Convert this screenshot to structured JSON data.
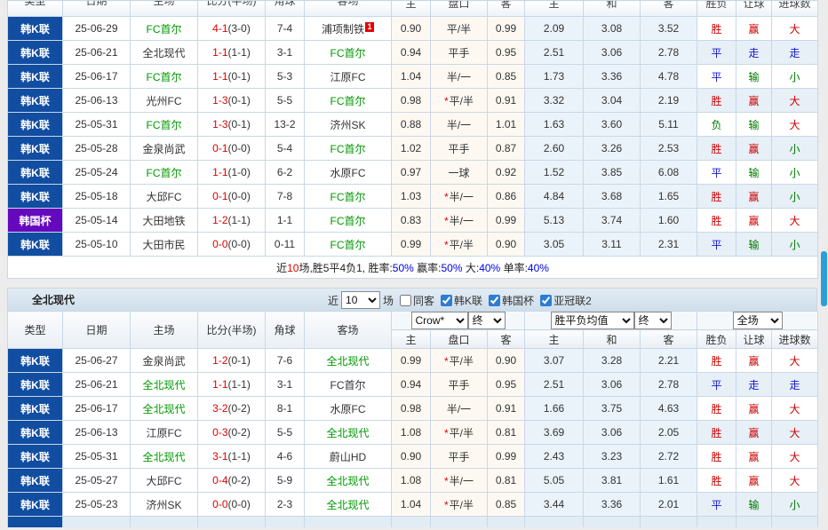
{
  "colors": {
    "league_blue": "#114da1",
    "cup_purple": "#6509be",
    "team_green": "#009900",
    "win_red": "#cc0000",
    "draw_blue": "#1616cc",
    "lose_green": "#007a00",
    "asian_odds_bg": "#fdf9f2",
    "euro_odds_bg": "#eaf3fa",
    "scrollbar_blue": "#2d9fd8"
  },
  "columns": [
    "类型",
    "日期",
    "主场",
    "比分(半场)",
    "角球",
    "客场",
    "主",
    "盘口",
    "客",
    "主",
    "和",
    "客",
    "胜负",
    "让球",
    "进球数"
  ],
  "table1": {
    "rows": [
      {
        "league": "韩K联",
        "cup": false,
        "date": "25-06-29",
        "home": "FC首尔",
        "home_green": true,
        "score": "4-1",
        "half": "(3-0)",
        "corners": "7-4",
        "away": "浦项制铁",
        "away_green": false,
        "badge": "1",
        "ah_home": "0.90",
        "star": false,
        "handicap": "平/半",
        "ah_away": "0.99",
        "eu_home": "2.09",
        "eu_draw": "3.08",
        "eu_away": "3.52",
        "wdl": "胜",
        "wdl_c": "red",
        "hc": "赢",
        "hc_c": "red",
        "ou": "大",
        "ou_c": "red",
        "alt": false
      },
      {
        "league": "韩K联",
        "cup": false,
        "date": "25-06-21",
        "home": "全北现代",
        "home_green": false,
        "score": "1-1",
        "half": "(1-1)",
        "corners": "3-1",
        "away": "FC首尔",
        "away_green": true,
        "badge": "",
        "ah_home": "0.94",
        "star": false,
        "handicap": "平手",
        "ah_away": "0.95",
        "eu_home": "2.51",
        "eu_draw": "3.06",
        "eu_away": "2.78",
        "wdl": "平",
        "wdl_c": "blue",
        "hc": "走",
        "hc_c": "blue",
        "ou": "走",
        "ou_c": "blue",
        "alt": true
      },
      {
        "league": "韩K联",
        "cup": false,
        "date": "25-06-17",
        "home": "FC首尔",
        "home_green": true,
        "score": "1-1",
        "half": "(0-1)",
        "corners": "5-3",
        "away": "江原FC",
        "away_green": false,
        "badge": "",
        "ah_home": "1.04",
        "star": false,
        "handicap": "半/一",
        "ah_away": "0.85",
        "eu_home": "1.73",
        "eu_draw": "3.36",
        "eu_away": "4.78",
        "wdl": "平",
        "wdl_c": "blue",
        "hc": "输",
        "hc_c": "green",
        "ou": "小",
        "ou_c": "green",
        "alt": false
      },
      {
        "league": "韩K联",
        "cup": false,
        "date": "25-06-13",
        "home": "光州FC",
        "home_green": false,
        "score": "1-3",
        "half": "(0-1)",
        "corners": "5-5",
        "away": "FC首尔",
        "away_green": true,
        "badge": "",
        "ah_home": "0.98",
        "star": true,
        "handicap": "平/半",
        "ah_away": "0.91",
        "eu_home": "3.32",
        "eu_draw": "3.04",
        "eu_away": "2.19",
        "wdl": "胜",
        "wdl_c": "red",
        "hc": "赢",
        "hc_c": "red",
        "ou": "大",
        "ou_c": "red",
        "alt": true
      },
      {
        "league": "韩K联",
        "cup": false,
        "date": "25-05-31",
        "home": "FC首尔",
        "home_green": true,
        "score": "1-3",
        "half": "(0-1)",
        "corners": "13-2",
        "away": "济州SK",
        "away_green": false,
        "badge": "",
        "ah_home": "0.88",
        "star": false,
        "handicap": "半/一",
        "ah_away": "1.01",
        "eu_home": "1.63",
        "eu_draw": "3.60",
        "eu_away": "5.11",
        "wdl": "负",
        "wdl_c": "green",
        "hc": "输",
        "hc_c": "green",
        "ou": "大",
        "ou_c": "red",
        "alt": false
      },
      {
        "league": "韩K联",
        "cup": false,
        "date": "25-05-28",
        "home": "金泉尚武",
        "home_green": false,
        "score": "0-1",
        "half": "(0-0)",
        "corners": "5-4",
        "away": "FC首尔",
        "away_green": true,
        "badge": "",
        "ah_home": "1.02",
        "star": false,
        "handicap": "平手",
        "ah_away": "0.87",
        "eu_home": "2.60",
        "eu_draw": "3.26",
        "eu_away": "2.53",
        "wdl": "胜",
        "wdl_c": "red",
        "hc": "赢",
        "hc_c": "red",
        "ou": "小",
        "ou_c": "green",
        "alt": true
      },
      {
        "league": "韩K联",
        "cup": false,
        "date": "25-05-24",
        "home": "FC首尔",
        "home_green": true,
        "score": "1-1",
        "half": "(1-0)",
        "corners": "6-2",
        "away": "水原FC",
        "away_green": false,
        "badge": "",
        "ah_home": "0.97",
        "star": false,
        "handicap": "一球",
        "ah_away": "0.92",
        "eu_home": "1.52",
        "eu_draw": "3.85",
        "eu_away": "6.08",
        "wdl": "平",
        "wdl_c": "blue",
        "hc": "输",
        "hc_c": "green",
        "ou": "小",
        "ou_c": "green",
        "alt": false
      },
      {
        "league": "韩K联",
        "cup": false,
        "date": "25-05-18",
        "home": "大邱FC",
        "home_green": false,
        "score": "0-1",
        "half": "(0-0)",
        "corners": "7-8",
        "away": "FC首尔",
        "away_green": true,
        "badge": "",
        "ah_home": "1.03",
        "star": true,
        "handicap": "半/一",
        "ah_away": "0.86",
        "eu_home": "4.84",
        "eu_draw": "3.68",
        "eu_away": "1.65",
        "wdl": "胜",
        "wdl_c": "red",
        "hc": "赢",
        "hc_c": "red",
        "ou": "小",
        "ou_c": "green",
        "alt": true
      },
      {
        "league": "韩国杯",
        "cup": true,
        "date": "25-05-14",
        "home": "大田地铁",
        "home_green": false,
        "score": "1-2",
        "half": "(1-1)",
        "corners": "1-1",
        "away": "FC首尔",
        "away_green": true,
        "badge": "",
        "ah_home": "0.83",
        "star": true,
        "handicap": "半/一",
        "ah_away": "0.99",
        "eu_home": "5.13",
        "eu_draw": "3.74",
        "eu_away": "1.60",
        "wdl": "胜",
        "wdl_c": "red",
        "hc": "赢",
        "hc_c": "red",
        "ou": "大",
        "ou_c": "red",
        "alt": false
      },
      {
        "league": "韩K联",
        "cup": false,
        "date": "25-05-10",
        "home": "大田市民",
        "home_green": false,
        "score": "0-0",
        "half": "(0-0)",
        "corners": "0-11",
        "away": "FC首尔",
        "away_green": true,
        "badge": "",
        "ah_home": "0.99",
        "star": true,
        "handicap": "平/半",
        "ah_away": "0.90",
        "eu_home": "3.05",
        "eu_draw": "3.11",
        "eu_away": "2.31",
        "wdl": "平",
        "wdl_c": "blue",
        "hc": "输",
        "hc_c": "green",
        "ou": "小",
        "ou_c": "green",
        "alt": true
      }
    ],
    "summary": [
      {
        "t": "近"
      },
      {
        "t": "10",
        "c": "red"
      },
      {
        "t": "场,胜5平4负1, 胜率:"
      },
      {
        "t": "50%",
        "c": "blue"
      },
      {
        "t": " 赢率:"
      },
      {
        "t": "50%",
        "c": "blue"
      },
      {
        "t": " 大:"
      },
      {
        "t": "40%",
        "c": "blue"
      },
      {
        "t": " 单率:"
      },
      {
        "t": "40%",
        "c": "blue"
      }
    ]
  },
  "section2": {
    "title": "全北现代",
    "recent_label": "近",
    "recent_value": "10",
    "recent_suffix": "场",
    "filters": [
      {
        "label": "同客",
        "checked": false
      },
      {
        "label": "韩K联",
        "checked": true
      },
      {
        "label": "韩国杯",
        "checked": true
      },
      {
        "label": "亚冠联2",
        "checked": true
      }
    ],
    "dropdowns": {
      "asian_company": "Crow*",
      "asian_time": "终",
      "euro_mode": "胜平负均值",
      "euro_time": "终",
      "scope": "全场"
    }
  },
  "table2": {
    "partial_row": true,
    "rows": [
      {
        "league": "韩K联",
        "cup": false,
        "date": "25-06-27",
        "home": "金泉尚武",
        "home_green": false,
        "score": "1-2",
        "half": "(0-1)",
        "corners": "7-6",
        "away": "全北现代",
        "away_green": true,
        "badge": "",
        "ah_home": "0.99",
        "star": true,
        "handicap": "平/半",
        "ah_away": "0.90",
        "eu_home": "3.07",
        "eu_draw": "3.28",
        "eu_away": "2.21",
        "wdl": "胜",
        "wdl_c": "red",
        "hc": "赢",
        "hc_c": "red",
        "ou": "大",
        "ou_c": "red",
        "alt": false
      },
      {
        "league": "韩K联",
        "cup": false,
        "date": "25-06-21",
        "home": "全北现代",
        "home_green": true,
        "score": "1-1",
        "half": "(1-1)",
        "corners": "3-1",
        "away": "FC首尔",
        "away_green": false,
        "badge": "",
        "ah_home": "0.94",
        "star": false,
        "handicap": "平手",
        "ah_away": "0.95",
        "eu_home": "2.51",
        "eu_draw": "3.06",
        "eu_away": "2.78",
        "wdl": "平",
        "wdl_c": "blue",
        "hc": "走",
        "hc_c": "blue",
        "ou": "走",
        "ou_c": "blue",
        "alt": true
      },
      {
        "league": "韩K联",
        "cup": false,
        "date": "25-06-17",
        "home": "全北现代",
        "home_green": true,
        "score": "3-2",
        "half": "(0-2)",
        "corners": "8-1",
        "away": "水原FC",
        "away_green": false,
        "badge": "",
        "ah_home": "0.98",
        "star": false,
        "handicap": "半/一",
        "ah_away": "0.91",
        "eu_home": "1.66",
        "eu_draw": "3.75",
        "eu_away": "4.63",
        "wdl": "胜",
        "wdl_c": "red",
        "hc": "赢",
        "hc_c": "red",
        "ou": "大",
        "ou_c": "red",
        "alt": false
      },
      {
        "league": "韩K联",
        "cup": false,
        "date": "25-06-13",
        "home": "江原FC",
        "home_green": false,
        "score": "0-3",
        "half": "(0-2)",
        "corners": "5-5",
        "away": "全北现代",
        "away_green": true,
        "badge": "",
        "ah_home": "1.08",
        "star": true,
        "handicap": "平/半",
        "ah_away": "0.81",
        "eu_home": "3.69",
        "eu_draw": "3.06",
        "eu_away": "2.05",
        "wdl": "胜",
        "wdl_c": "red",
        "hc": "赢",
        "hc_c": "red",
        "ou": "大",
        "ou_c": "red",
        "alt": true
      },
      {
        "league": "韩K联",
        "cup": false,
        "date": "25-05-31",
        "home": "全北现代",
        "home_green": true,
        "score": "3-1",
        "half": "(1-1)",
        "corners": "4-6",
        "away": "蔚山HD",
        "away_green": false,
        "badge": "",
        "ah_home": "0.90",
        "star": false,
        "handicap": "平手",
        "ah_away": "0.99",
        "eu_home": "2.43",
        "eu_draw": "3.23",
        "eu_away": "2.72",
        "wdl": "胜",
        "wdl_c": "red",
        "hc": "赢",
        "hc_c": "red",
        "ou": "大",
        "ou_c": "red",
        "alt": false
      },
      {
        "league": "韩K联",
        "cup": false,
        "date": "25-05-27",
        "home": "大邱FC",
        "home_green": false,
        "score": "0-4",
        "half": "(0-2)",
        "corners": "5-9",
        "away": "全北现代",
        "away_green": true,
        "badge": "",
        "ah_home": "1.08",
        "star": true,
        "handicap": "半/一",
        "ah_away": "0.81",
        "eu_home": "5.05",
        "eu_draw": "3.81",
        "eu_away": "1.61",
        "wdl": "胜",
        "wdl_c": "red",
        "hc": "赢",
        "hc_c": "red",
        "ou": "大",
        "ou_c": "red",
        "alt": false
      },
      {
        "league": "韩K联",
        "cup": false,
        "date": "25-05-23",
        "home": "济州SK",
        "home_green": false,
        "score": "0-0",
        "half": "(0-0)",
        "corners": "2-3",
        "away": "全北现代",
        "away_green": true,
        "badge": "",
        "ah_home": "1.04",
        "star": true,
        "handicap": "平/半",
        "ah_away": "0.85",
        "eu_home": "3.44",
        "eu_draw": "3.36",
        "eu_away": "2.01",
        "wdl": "平",
        "wdl_c": "blue",
        "hc": "输",
        "hc_c": "green",
        "ou": "小",
        "ou_c": "green",
        "alt": true
      }
    ]
  }
}
